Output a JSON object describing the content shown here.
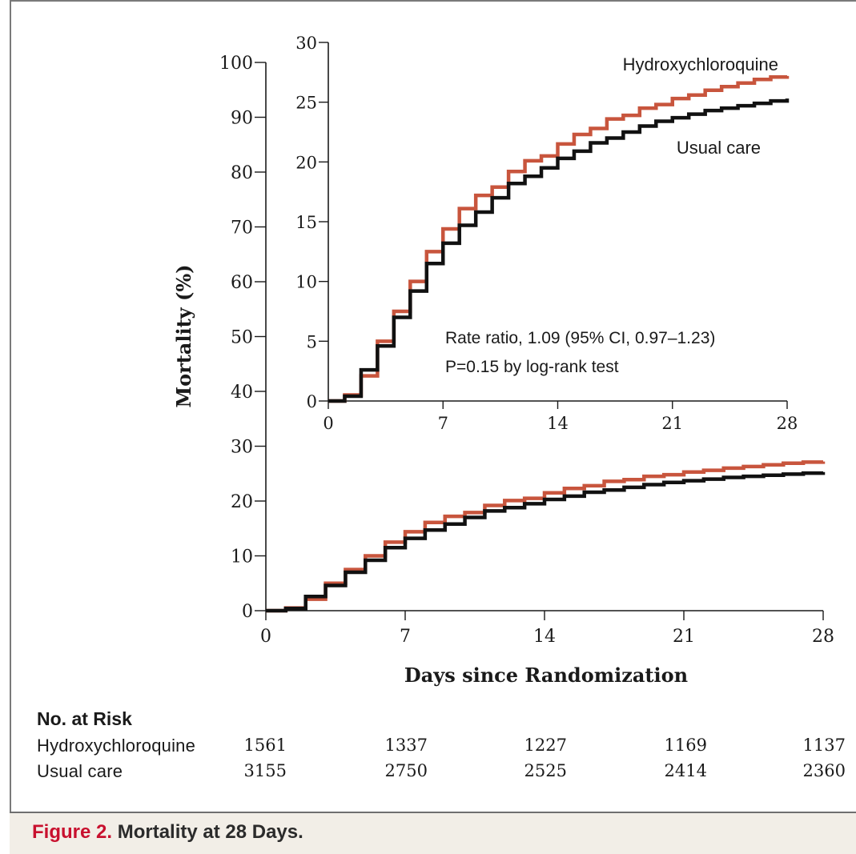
{
  "chart_data": [
    {
      "type": "line",
      "panel": "main",
      "step": true,
      "xlabel": "Days since Randomization",
      "ylabel": "Mortality (%)",
      "xlim": [
        0,
        28
      ],
      "ylim": [
        0,
        100
      ],
      "xticks": [
        0,
        7,
        14,
        21,
        28
      ],
      "yticks": [
        0,
        10,
        20,
        30,
        40,
        50,
        60,
        70,
        80,
        90,
        100
      ],
      "x": [
        0,
        1,
        2,
        3,
        4,
        5,
        6,
        7,
        8,
        9,
        10,
        11,
        12,
        13,
        14,
        15,
        16,
        17,
        18,
        19,
        20,
        21,
        22,
        23,
        24,
        25,
        26,
        27,
        28
      ],
      "series": [
        {
          "name": "Hydroxychloroquine",
          "color": "#c8553d",
          "values": [
            0,
            0.5,
            2.1,
            5.0,
            7.5,
            10.0,
            12.5,
            14.4,
            16.1,
            17.2,
            17.9,
            19.2,
            20.1,
            20.5,
            21.5,
            22.3,
            22.8,
            23.6,
            23.9,
            24.5,
            24.8,
            25.3,
            25.6,
            26.0,
            26.3,
            26.6,
            26.9,
            27.1,
            27.2
          ]
        },
        {
          "name": "Usual care",
          "color": "#111111",
          "values": [
            0,
            0.4,
            2.6,
            4.6,
            7.0,
            9.2,
            11.5,
            13.2,
            14.7,
            15.8,
            17.0,
            18.2,
            18.8,
            19.5,
            20.3,
            20.9,
            21.6,
            22.0,
            22.5,
            23.0,
            23.4,
            23.7,
            24.0,
            24.3,
            24.5,
            24.7,
            24.9,
            25.1,
            25.3
          ]
        }
      ]
    },
    {
      "type": "line",
      "panel": "inset",
      "step": true,
      "xlim": [
        0,
        28
      ],
      "ylim": [
        0,
        30
      ],
      "xticks": [
        0,
        7,
        14,
        21,
        28
      ],
      "yticks": [
        0,
        5,
        10,
        15,
        20,
        25,
        30
      ],
      "series_labels": [
        "Hydroxychloroquine",
        "Usual care"
      ],
      "annotations": [
        "Rate ratio, 1.09 (95% CI, 0.97–1.23)",
        "P=0.15 by log-rank test"
      ]
    }
  ],
  "risk_table": {
    "title": "No. at Risk",
    "rows": [
      {
        "label": "Hydroxychloroquine",
        "values": [
          "1561",
          "1337",
          "1227",
          "1169",
          "1137"
        ]
      },
      {
        "label": "Usual care",
        "values": [
          "3155",
          "2750",
          "2525",
          "2414",
          "2360"
        ]
      }
    ]
  },
  "caption": {
    "prefix": "Figure 2.",
    "text": "Mortality at 28 Days."
  }
}
